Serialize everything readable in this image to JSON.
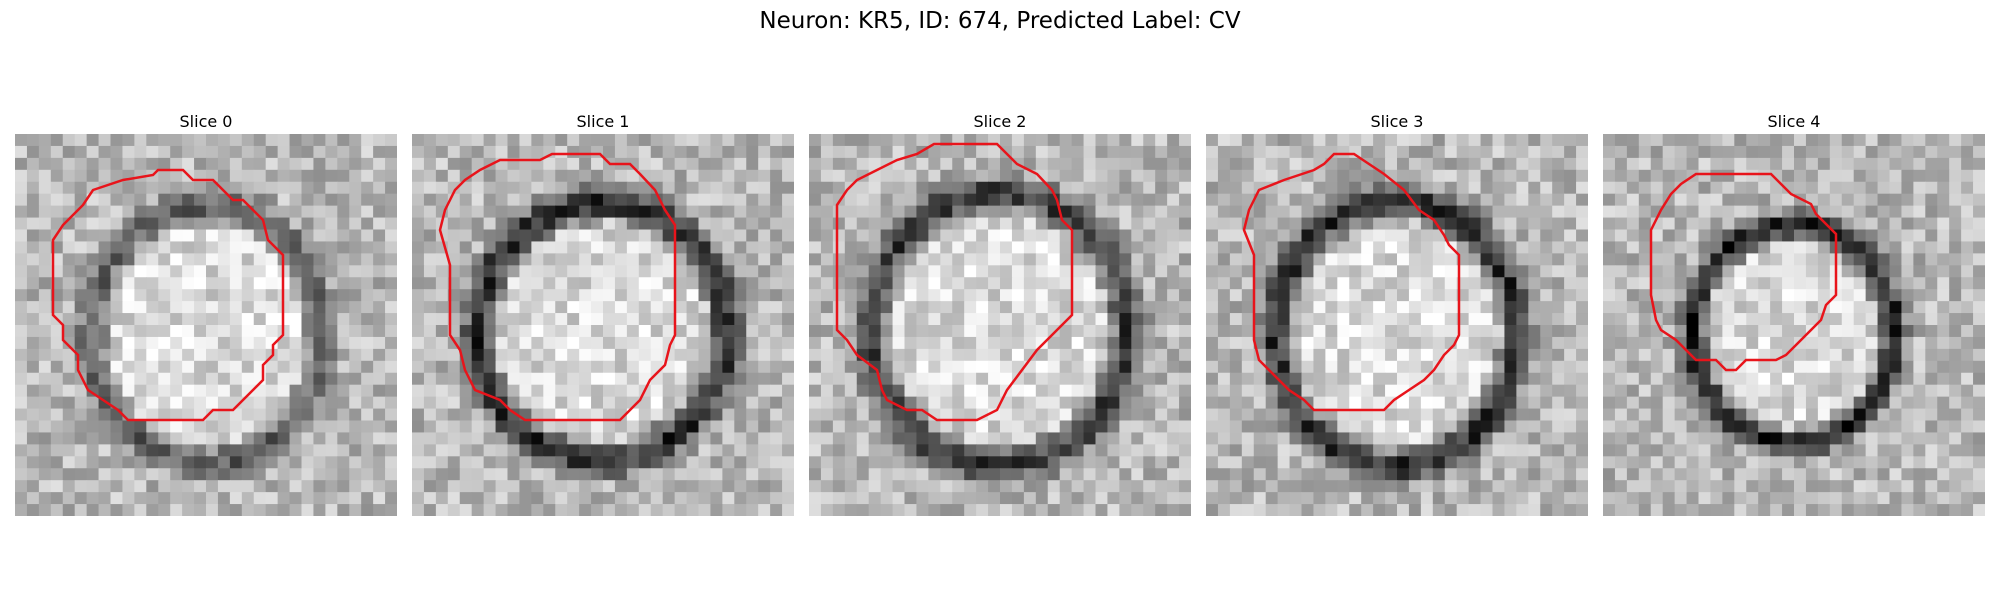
{
  "figure": {
    "title": "Neuron: KR5, ID: 674, Predicted Label: CV"
  },
  "panels": [
    {
      "label": "Slice 0",
      "seed": 11,
      "ring_darkness": 0.35,
      "contour_color": "#e8141b"
    },
    {
      "label": "Slice 1",
      "seed": 23,
      "ring_darkness": 0.55,
      "contour_color": "#e8141b"
    },
    {
      "label": "Slice 2",
      "seed": 37,
      "ring_darkness": 0.5,
      "contour_color": "#e8141b"
    },
    {
      "label": "Slice 3",
      "seed": 41,
      "ring_darkness": 0.55,
      "contour_color": "#e8141b"
    },
    {
      "label": "Slice 4",
      "seed": 53,
      "ring_darkness": 0.6,
      "contour_color": "#e8141b"
    }
  ],
  "grid_cells": 32
}
